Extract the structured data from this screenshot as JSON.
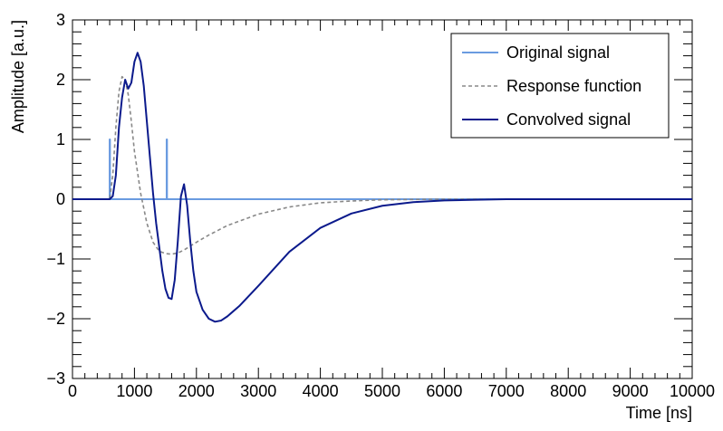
{
  "chart_data": {
    "type": "line",
    "xlabel": "Time [ns]",
    "ylabel": "Amplitude [a.u.]",
    "xlim": [
      0,
      10000
    ],
    "ylim": [
      -3,
      3
    ],
    "x_ticks": [
      0,
      1000,
      2000,
      3000,
      4000,
      5000,
      6000,
      7000,
      8000,
      9000,
      10000
    ],
    "x_tick_labels": [
      "0",
      "1000",
      "2000",
      "3000",
      "4000",
      "5000",
      "6000",
      "7000",
      "8000",
      "9000",
      "10000"
    ],
    "y_ticks": [
      -3,
      -2,
      -1,
      0,
      1,
      2,
      3
    ],
    "y_tick_labels": [
      "−3",
      "−2",
      "−1",
      "0",
      "1",
      "2",
      "3"
    ],
    "grid": false,
    "legend_position": "top-right",
    "series": [
      {
        "name": "Original signal",
        "color": "#6a9be0",
        "style": "solid",
        "x": [
          0,
          600,
          600,
          605,
          605,
          1520,
          1520,
          1525,
          1525,
          10000
        ],
        "y": [
          0,
          0,
          1,
          1,
          0,
          0,
          1,
          1,
          0,
          0
        ]
      },
      {
        "name": "Response function",
        "color": "#888888",
        "style": "dashed",
        "x": [
          0,
          600,
          650,
          700,
          750,
          800,
          850,
          900,
          950,
          1000,
          1100,
          1200,
          1300,
          1400,
          1500,
          1600,
          1700,
          1800,
          2000,
          2200,
          2500,
          3000,
          3500,
          4000,
          4500,
          5000,
          6000,
          7000,
          8000,
          10000
        ],
        "y": [
          0,
          0,
          0.4,
          1.2,
          1.8,
          2.05,
          2.0,
          1.75,
          1.3,
          0.8,
          0.1,
          -0.4,
          -0.72,
          -0.87,
          -0.91,
          -0.92,
          -0.9,
          -0.85,
          -0.72,
          -0.6,
          -0.44,
          -0.25,
          -0.13,
          -0.06,
          -0.03,
          -0.01,
          0,
          0,
          0,
          0
        ]
      },
      {
        "name": "Convolved signal",
        "color": "#0b1a8c",
        "style": "solid",
        "x": [
          0,
          600,
          650,
          700,
          750,
          800,
          850,
          900,
          950,
          1000,
          1050,
          1100,
          1150,
          1200,
          1250,
          1300,
          1350,
          1400,
          1450,
          1500,
          1550,
          1600,
          1650,
          1700,
          1750,
          1800,
          1850,
          1900,
          1950,
          2000,
          2100,
          2200,
          2300,
          2400,
          2500,
          2700,
          3000,
          3500,
          4000,
          4500,
          5000,
          5500,
          6000,
          6500,
          7000,
          7500,
          8000,
          10000
        ],
        "y": [
          0,
          0,
          0.05,
          0.4,
          1.2,
          1.7,
          2.0,
          1.85,
          1.95,
          2.3,
          2.45,
          2.3,
          1.9,
          1.3,
          0.7,
          0.1,
          -0.4,
          -0.8,
          -1.2,
          -1.5,
          -1.65,
          -1.67,
          -1.35,
          -0.7,
          0.05,
          0.25,
          -0.1,
          -0.7,
          -1.2,
          -1.55,
          -1.85,
          -2.0,
          -2.05,
          -2.03,
          -1.96,
          -1.78,
          -1.45,
          -0.88,
          -0.48,
          -0.24,
          -0.11,
          -0.05,
          -0.02,
          -0.01,
          0,
          0,
          0,
          0
        ]
      }
    ]
  }
}
